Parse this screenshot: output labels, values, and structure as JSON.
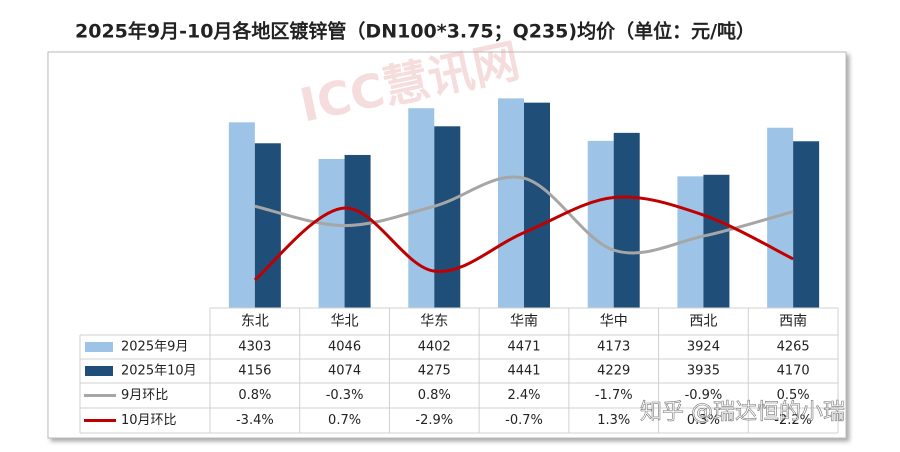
{
  "chart_data": {
    "type": "bar_line_table",
    "title": "2025年9月-10月各地区镀锌管（DN100*3.75；Q235)均价（单位：元/吨）",
    "categories": [
      "东北",
      "华北",
      "华东",
      "华南",
      "华中",
      "西北",
      "西南"
    ],
    "ylim": [
      3000,
      4600
    ],
    "y2lim": [
      -5,
      8
    ],
    "series": [
      {
        "name": "2025年9月",
        "kind": "bar",
        "color": "#9dc3e6",
        "values": [
          4303,
          4046,
          4402,
          4471,
          4173,
          3924,
          4265
        ]
      },
      {
        "name": "2025年10月",
        "kind": "bar",
        "color": "#1f4e79",
        "values": [
          4156,
          4074,
          4275,
          4441,
          4229,
          3935,
          4170
        ]
      },
      {
        "name": "9月环比",
        "kind": "line",
        "axis": "y2",
        "color": "#a6a6a6",
        "values": [
          0.8,
          -0.3,
          0.8,
          2.4,
          -1.7,
          -0.9,
          0.5
        ],
        "value_labels": [
          "0.8%",
          "-0.3%",
          "0.8%",
          "2.4%",
          "-1.7%",
          "-0.9%",
          "0.5%"
        ]
      },
      {
        "name": "10月环比",
        "kind": "line",
        "axis": "y2",
        "color": "#c00000",
        "values": [
          -3.4,
          0.7,
          -2.9,
          -0.7,
          1.3,
          0.3,
          -2.2
        ],
        "value_labels": [
          "-3.4%",
          "0.7%",
          "-2.9%",
          "-0.7%",
          "1.3%",
          "0.3%",
          "-2.2%"
        ]
      }
    ],
    "watermarks": [
      "ICC慧讯网",
      "知乎 @瑞达恒的小瑞"
    ]
  }
}
